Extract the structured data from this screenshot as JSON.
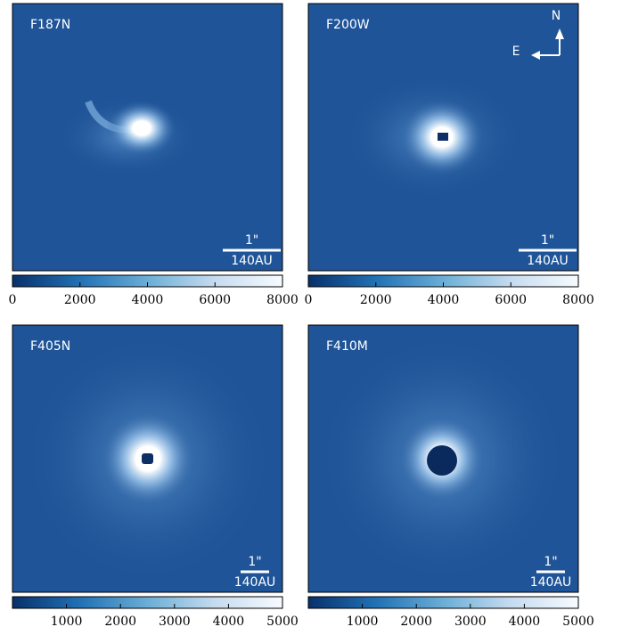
{
  "chart_data": [
    {
      "type": "image",
      "title": "F187N",
      "scale_labels": [
        "1\"",
        "140AU"
      ],
      "clim": [
        0,
        8000
      ],
      "cticks": [
        0,
        2000,
        4000,
        6000,
        8000
      ],
      "colormap": [
        "#08306b",
        "#2171b5",
        "#6baed6",
        "#c6dbef",
        "#f7fbff"
      ]
    },
    {
      "type": "image",
      "title": "F200W",
      "scale_labels": [
        "1\"",
        "140AU"
      ],
      "compass": {
        "north": "N",
        "east": "E"
      },
      "clim": [
        0,
        8000
      ],
      "cticks": [
        0,
        2000,
        4000,
        6000,
        8000
      ],
      "colormap": [
        "#08306b",
        "#2171b5",
        "#6baed6",
        "#c6dbef",
        "#f7fbff"
      ]
    },
    {
      "type": "image",
      "title": "F405N",
      "scale_labels": [
        "1\"",
        "140AU"
      ],
      "clim": [
        0,
        5000
      ],
      "cticks": [
        1000,
        2000,
        3000,
        4000,
        5000
      ],
      "colormap": [
        "#08306b",
        "#2171b5",
        "#6baed6",
        "#c6dbef",
        "#f7fbff"
      ]
    },
    {
      "type": "image",
      "title": "F410M",
      "scale_labels": [
        "1\"",
        "140AU"
      ],
      "clim": [
        0,
        5000
      ],
      "cticks": [
        1000,
        2000,
        3000,
        4000,
        5000
      ],
      "colormap": [
        "#08306b",
        "#2171b5",
        "#6baed6",
        "#c6dbef",
        "#f7fbff"
      ]
    }
  ]
}
